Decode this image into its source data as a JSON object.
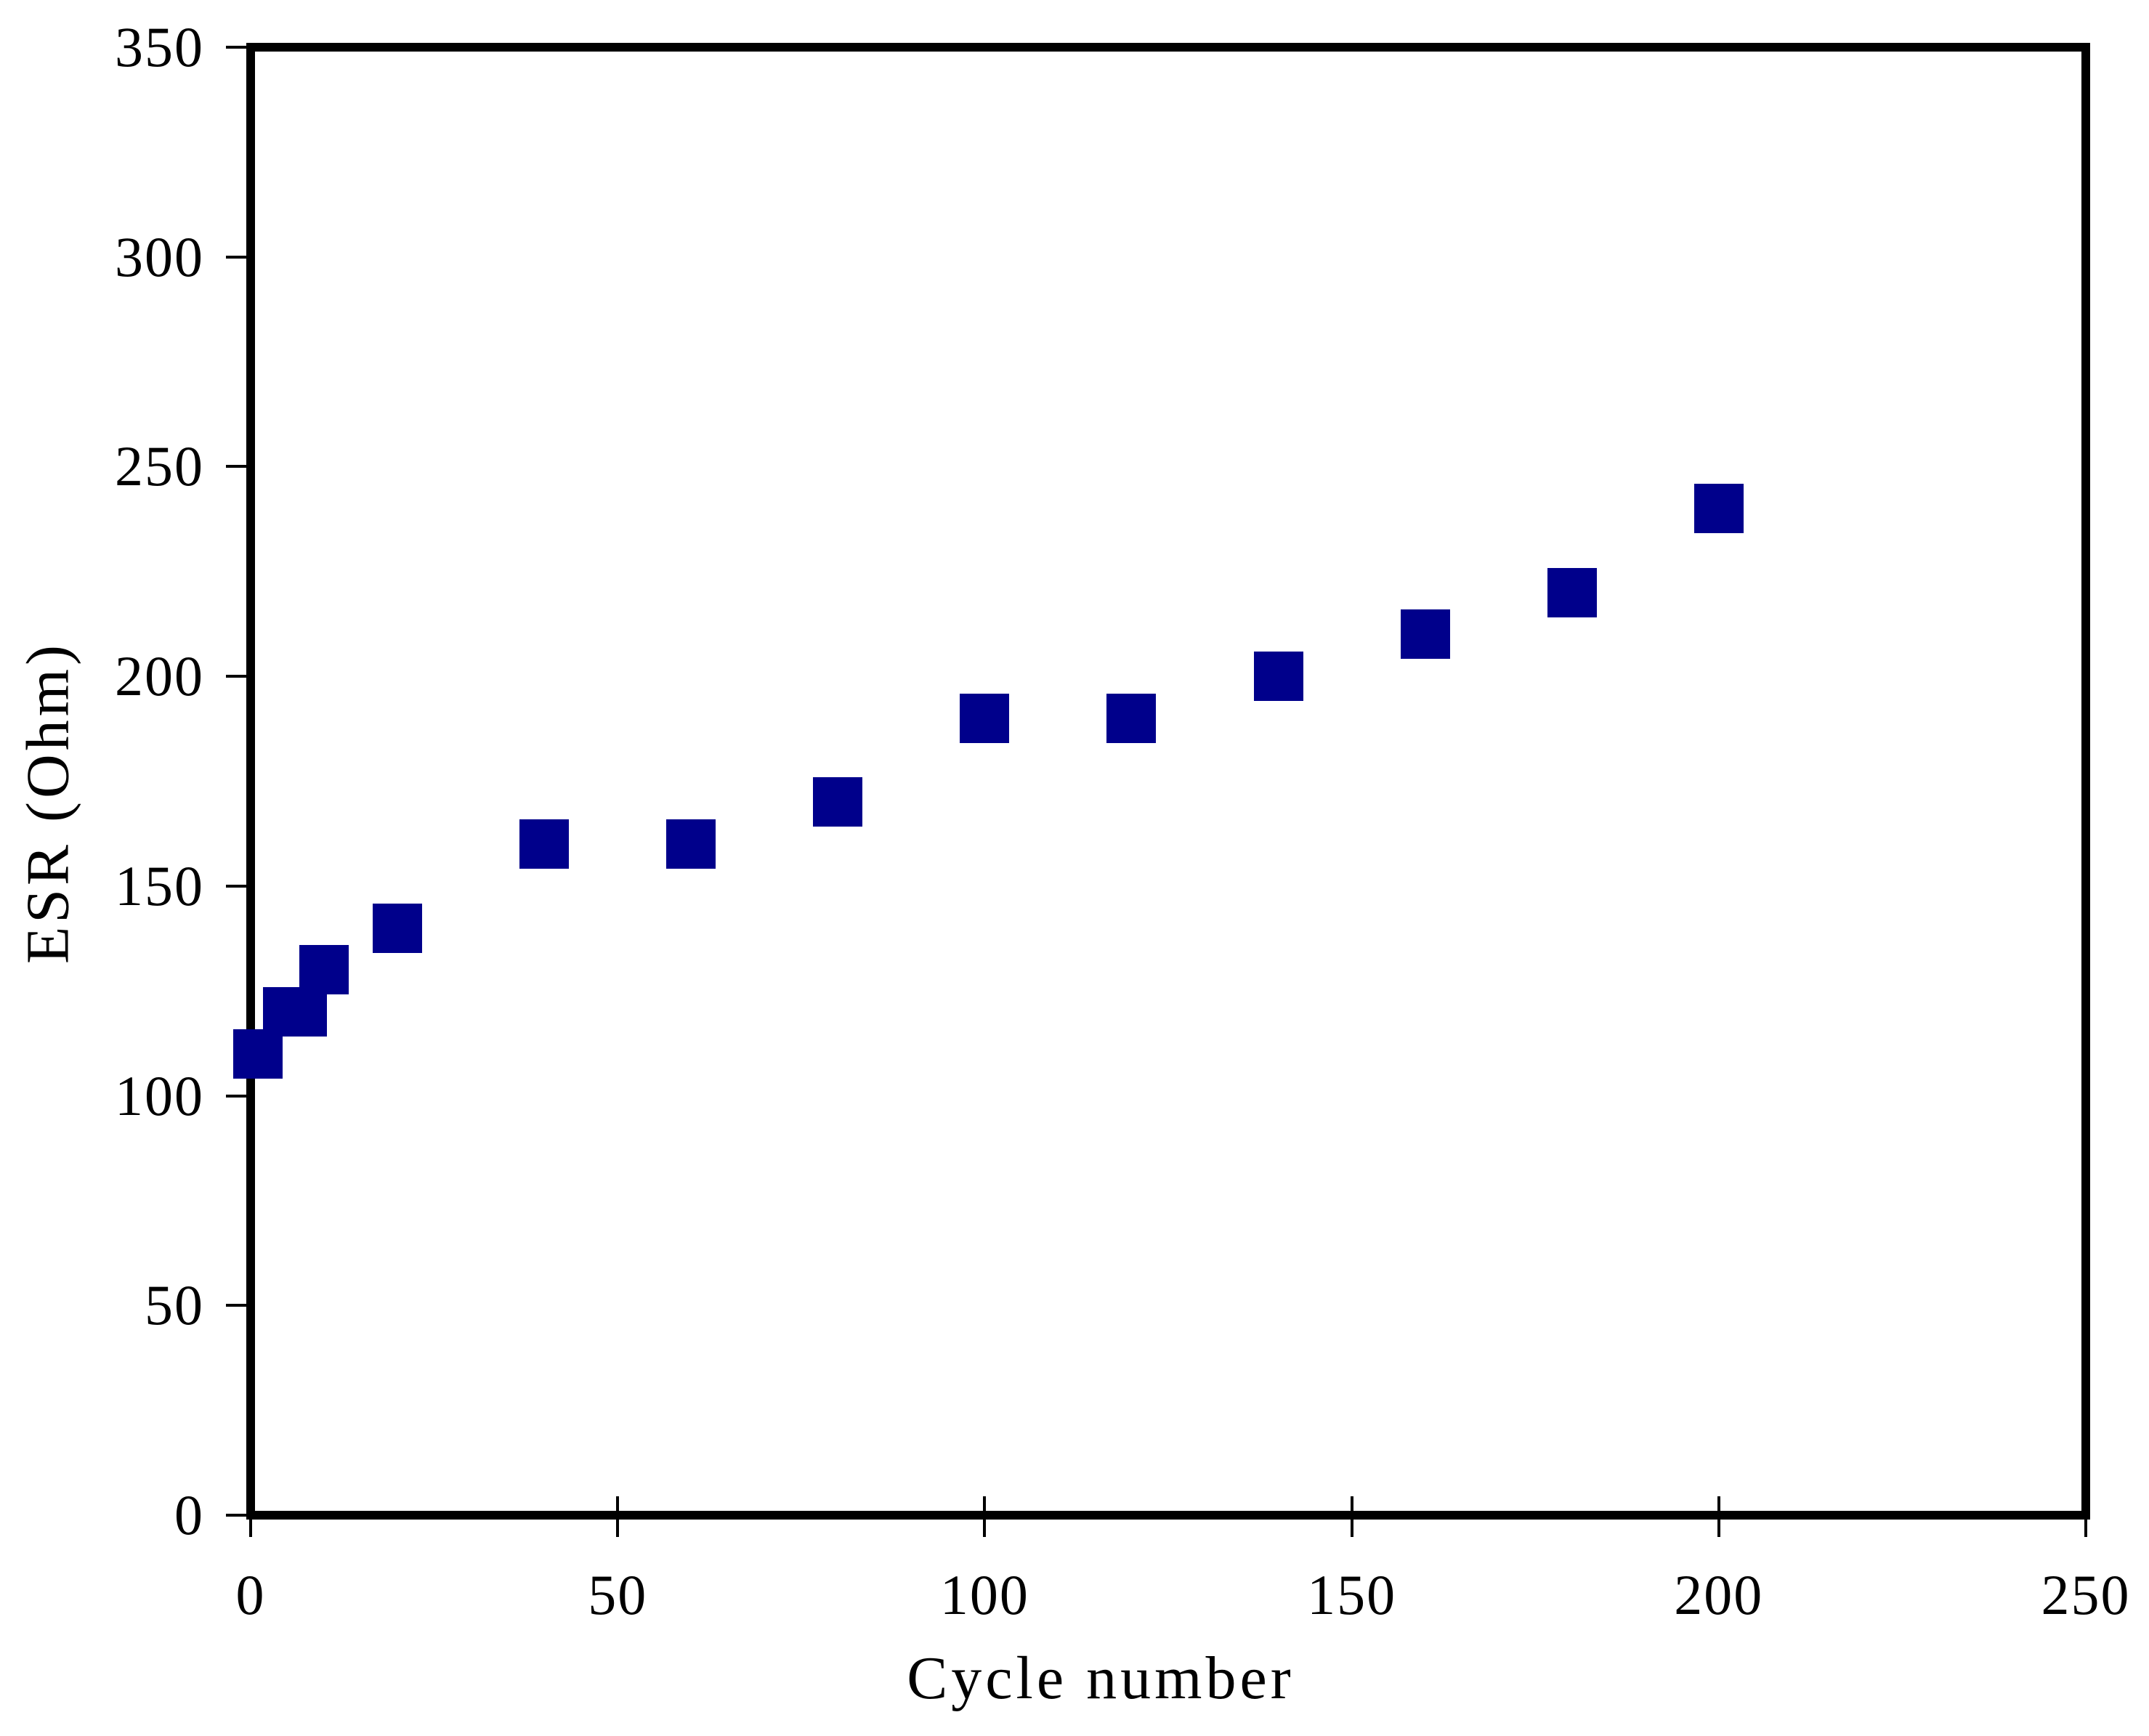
{
  "chart_data": {
    "type": "scatter",
    "title": "",
    "xlabel": "Cycle number",
    "ylabel": "ESR (Ohm)",
    "xlim": [
      0,
      250
    ],
    "ylim": [
      0,
      350
    ],
    "xticks": [
      0,
      50,
      100,
      150,
      200,
      250
    ],
    "yticks": [
      0,
      50,
      100,
      150,
      200,
      250,
      300,
      350
    ],
    "grid": false,
    "legend_position": "none",
    "marker": "filled-square",
    "marker_color": "#00008B",
    "frame_color": "#000000",
    "series": [
      {
        "name": "ESR",
        "points": [
          [
            1,
            110
          ],
          [
            5,
            120
          ],
          [
            7,
            120
          ],
          [
            10,
            130
          ],
          [
            20,
            140
          ],
          [
            40,
            160
          ],
          [
            60,
            160
          ],
          [
            80,
            170
          ],
          [
            100,
            190
          ],
          [
            120,
            190
          ],
          [
            140,
            200
          ],
          [
            160,
            210
          ],
          [
            180,
            220
          ],
          [
            200,
            240
          ]
        ]
      }
    ]
  }
}
